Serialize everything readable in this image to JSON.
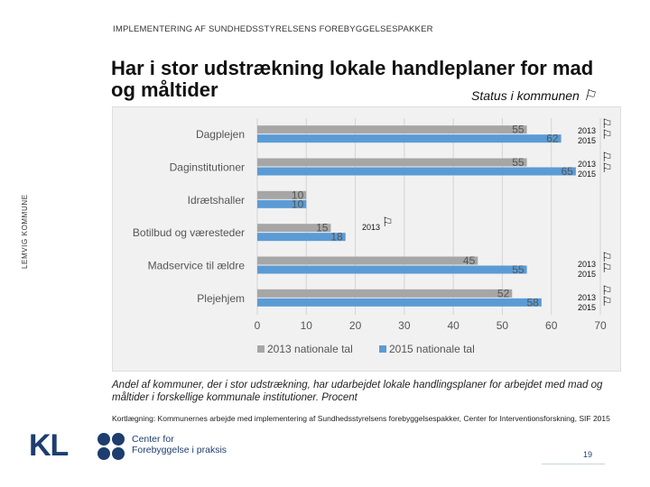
{
  "header": "IMPLEMENTERING AF SUNDHEDSSTYRELSENS FOREBYGGELSESPAKKER",
  "side_label": "LEMVIG KOMMUNE",
  "title": "Har i stor udstrækning lokale handleplaner for mad og måltider",
  "subtitle": "Status i kommunen",
  "flag_icon": "flag-icon",
  "markers": [
    {
      "lines": [
        "2013",
        "2015"
      ]
    },
    {
      "lines": [
        "2013",
        "2015"
      ]
    },
    {
      "lines": [
        "2013"
      ]
    },
    {
      "lines": [
        "2013",
        "2015"
      ]
    },
    {
      "lines": [
        "2013",
        "2015"
      ]
    }
  ],
  "chart_data": {
    "type": "bar",
    "orientation": "horizontal",
    "categories": [
      "Dagplejen",
      "Daginstitutioner",
      "Idrætshaller",
      "Botilbud og væresteder",
      "Madservice til ældre",
      "Plejehjem"
    ],
    "series": [
      {
        "name": "2013 nationale tal",
        "color": "#a6a6a6",
        "values": [
          55,
          55,
          10,
          15,
          45,
          52
        ]
      },
      {
        "name": "2015 nationale tal",
        "color": "#5b9bd5",
        "values": [
          62,
          65,
          10,
          18,
          55,
          58
        ]
      }
    ],
    "xlim": [
      0,
      70
    ],
    "xticks": [
      0,
      10,
      20,
      30,
      40,
      50,
      60,
      70
    ],
    "grid": true,
    "legend": "bottom"
  },
  "caption": "Andel af kommuner, der i stor udstrækning, har udarbejdet lokale handlingsplaner for arbejdet med mad og måltider i forskellige kommunale institutioner. Procent",
  "source": "Kortlægning: Kommunernes arbejde med implementering af Sundhedsstyrelsens forebyggelsespakker, Center for Interventionsforskning, SIF 2015",
  "footer": {
    "kl_logo": "KL",
    "center_line1": "Center for",
    "center_line2": "Forebyggelse i praksis",
    "page_number": "19"
  }
}
